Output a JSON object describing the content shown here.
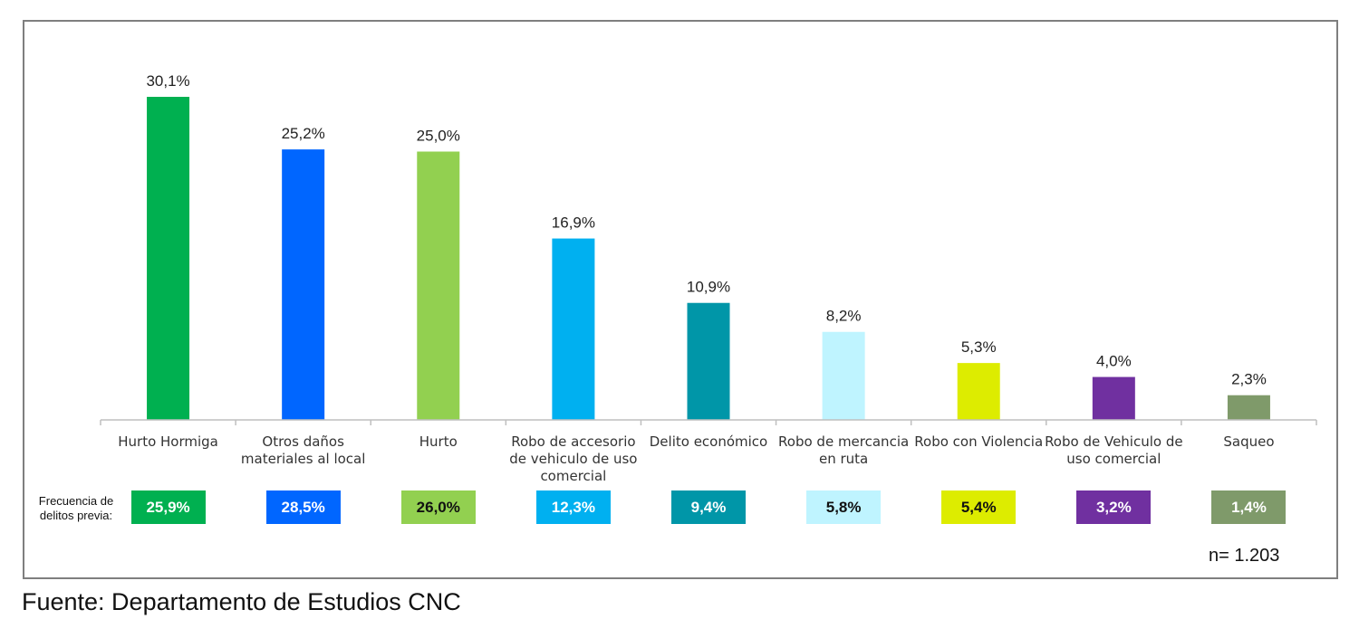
{
  "chart_data": {
    "type": "bar",
    "categories": [
      "Hurto Hormiga",
      "Otros daños materiales al local",
      "Hurto",
      "Robo de accesorio de vehiculo de uso comercial",
      "Delito económico",
      "Robo de mercancia en ruta",
      "Robo con Violencia",
      "Robo de Vehiculo de uso comercial",
      "Saqueo"
    ],
    "category_lines": [
      [
        "Hurto Hormiga"
      ],
      [
        "Otros daños",
        "materiales al local"
      ],
      [
        "Hurto"
      ],
      [
        "Robo de accesorio",
        "de vehiculo de uso",
        "comercial"
      ],
      [
        "Delito económico"
      ],
      [
        "Robo de mercancia",
        "en ruta"
      ],
      [
        "Robo con Violencia"
      ],
      [
        "Robo de Vehiculo de",
        "uso comercial"
      ],
      [
        "Saqueo"
      ]
    ],
    "values": [
      30.1,
      25.2,
      25.0,
      16.9,
      10.9,
      8.2,
      5.3,
      4.0,
      2.3
    ],
    "value_labels": [
      "30,1%",
      "25,2%",
      "25,0%",
      "16,9%",
      "10,9%",
      "8,2%",
      "5,3%",
      "4,0%",
      "2,3%"
    ],
    "colors": [
      "#00b050",
      "#0066ff",
      "#92d050",
      "#00b0f0",
      "#0096a8",
      "#bff4ff",
      "#ddec00",
      "#7030a0",
      "#7f9a6a"
    ],
    "ylim": [
      0,
      30.1
    ],
    "grid": false,
    "legend": "none"
  },
  "previous_frequency": {
    "label_lines": [
      "Frecuencia de",
      "delitos previa:"
    ],
    "values": [
      "25,9%",
      "28,5%",
      "26,0%",
      "12,3%",
      "9,4%",
      "5,8%",
      "5,4%",
      "3,2%",
      "1,4%"
    ],
    "text_colors": [
      "#ffffff",
      "#ffffff",
      "#111111",
      "#ffffff",
      "#ffffff",
      "#111111",
      "#111111",
      "#ffffff",
      "#ffffff"
    ]
  },
  "sample_size": "n= 1.203",
  "source": "Fuente: Departamento de Estudios CNC"
}
